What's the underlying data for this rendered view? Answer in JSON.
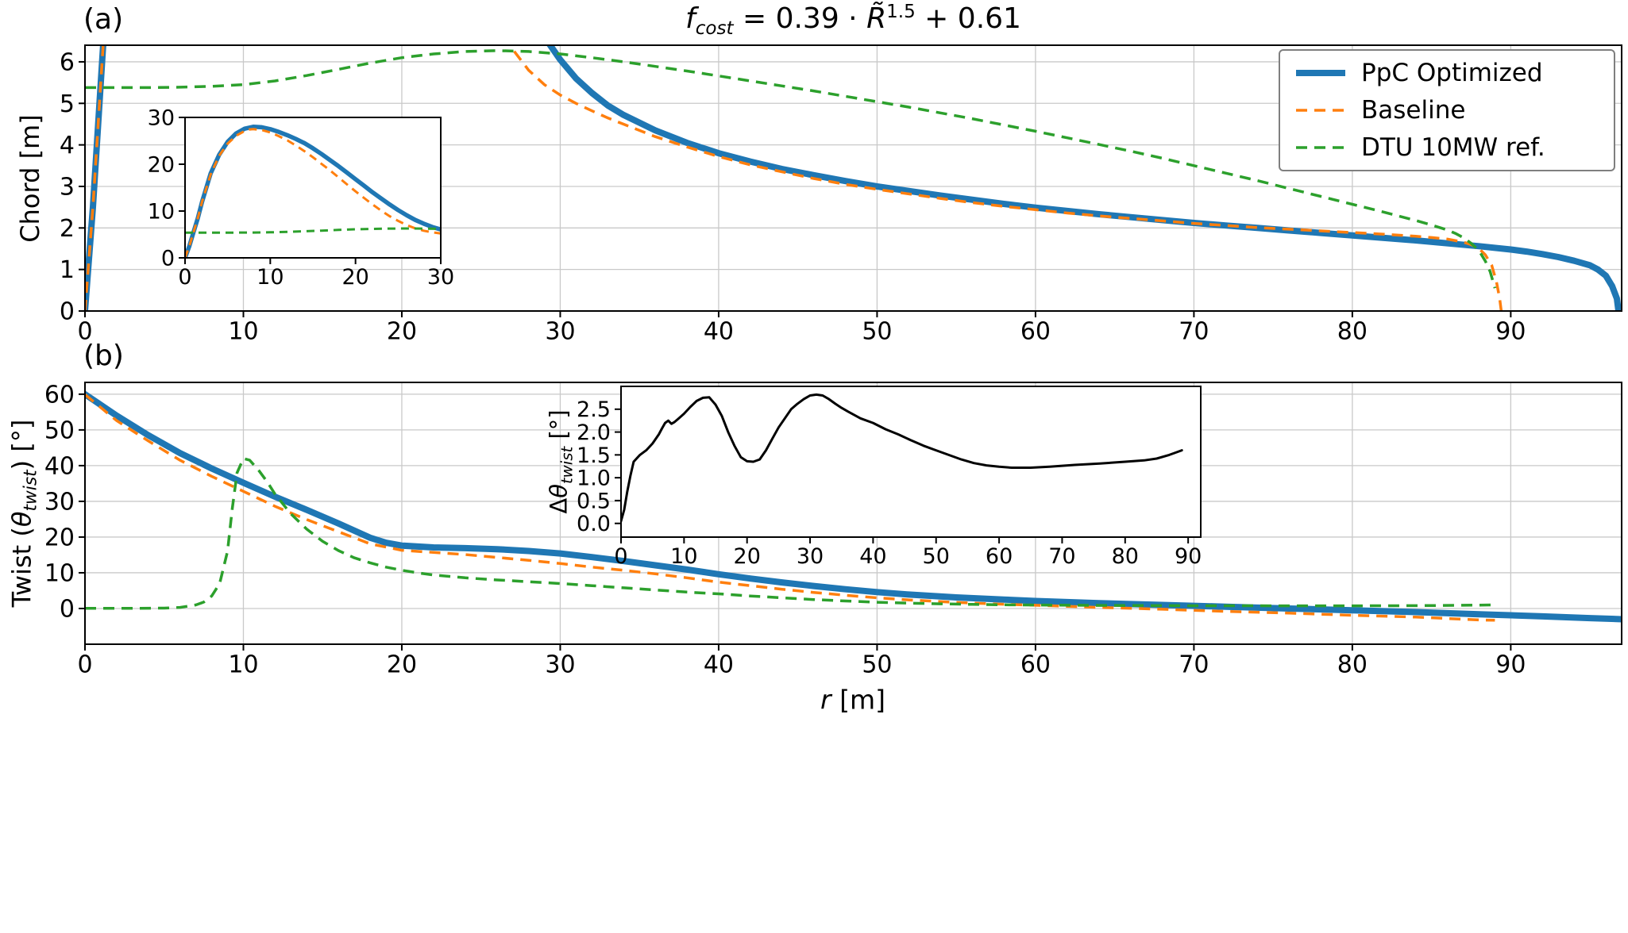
{
  "figure": {
    "title_parts": {
      "var": "f",
      "subscript": "cost",
      "mid": " = 0.39 · ",
      "base": "R̃",
      "exponent": "1.5",
      "tail": " + 0.61"
    },
    "panel_a_label": "(a)",
    "panel_b_label": "(b)"
  },
  "axes_labels": {
    "chord_ylabel": "Chord [m]",
    "twist_p1": "Twist (",
    "twist_theta": "θ",
    "twist_sub": "twist",
    "twist_p2": ") [°]",
    "xlabel_var": "r",
    "xlabel_unit": " [m]",
    "inset_p1": "Δ",
    "inset_theta": "θ",
    "inset_sub": "twist",
    "inset_p2": " [°]"
  },
  "style": {
    "background": "#ffffff",
    "grid_color": "#c9c9c9",
    "axis_color": "#000000",
    "blue": "#1f77b4",
    "orange": "#ff7f0e",
    "green": "#2ca02c",
    "black": "#000000"
  },
  "chart_data": [
    {
      "id": "panel-a",
      "type": "line",
      "title": "f_cost = 0.39 · R̃^1.5 + 0.61",
      "xlabel": "",
      "ylabel": "Chord [m]",
      "xlim": [
        0,
        97
      ],
      "ylim": [
        0,
        6.4
      ],
      "xticks": [
        0,
        10,
        20,
        30,
        40,
        50,
        60,
        70,
        80,
        90
      ],
      "xtick_labels": [
        "0",
        "10",
        "20",
        "30",
        "40",
        "50",
        "60",
        "70",
        "80",
        "90"
      ],
      "yticks": [
        0,
        1,
        2,
        3,
        4,
        5,
        6
      ],
      "ytick_labels": [
        "0",
        "1",
        "2",
        "3",
        "4",
        "5",
        "6"
      ],
      "grid": true,
      "legend_position": "upper right",
      "series": [
        {
          "name": "PpC Optimized",
          "color": "#1f77b4",
          "width": 8,
          "dash": null,
          "x": [
            0,
            0.5,
            1,
            1.5,
            2,
            3,
            4,
            5,
            6,
            7,
            8,
            9,
            10,
            11,
            12,
            13,
            14,
            15,
            16,
            17,
            18,
            19,
            20,
            21,
            22,
            23,
            24,
            25,
            26,
            27,
            28,
            29,
            30,
            31,
            32,
            33,
            34,
            36,
            38,
            40,
            42,
            44,
            46,
            48,
            50,
            52,
            54,
            56,
            58,
            60,
            62,
            64,
            66,
            68,
            70,
            72,
            74,
            76,
            78,
            80,
            82,
            84,
            86,
            88,
            90,
            91,
            92,
            93,
            94,
            95,
            95.5,
            96,
            96.4,
            96.7,
            96.8
          ],
          "y": [
            0,
            2.5,
            5.5,
            8.5,
            12,
            18,
            22,
            24.8,
            26.6,
            27.6,
            28,
            27.9,
            27.5,
            26.9,
            26.2,
            25.4,
            24.5,
            23.4,
            22.2,
            20.9,
            19.6,
            18.2,
            16.8,
            15.4,
            14,
            12.7,
            11.4,
            10.2,
            9.1,
            8.1,
            7.3,
            6.6,
            6.05,
            5.6,
            5.25,
            4.95,
            4.72,
            4.35,
            4.05,
            3.8,
            3.6,
            3.42,
            3.27,
            3.13,
            3,
            2.89,
            2.78,
            2.68,
            2.58,
            2.49,
            2.41,
            2.33,
            2.26,
            2.19,
            2.12,
            2.06,
            2,
            1.94,
            1.88,
            1.82,
            1.76,
            1.7,
            1.63,
            1.56,
            1.48,
            1.43,
            1.37,
            1.3,
            1.21,
            1.1,
            1.0,
            0.85,
            0.6,
            0.3,
            0
          ]
        },
        {
          "name": "Baseline",
          "color": "#ff7f0e",
          "width": 3.5,
          "dash": "14 9",
          "x": [
            0,
            0.5,
            1,
            1.5,
            2,
            3,
            4,
            5,
            6,
            7,
            7.5,
            8,
            9,
            10,
            11,
            12,
            13,
            14,
            15,
            16,
            17,
            18,
            19,
            20,
            21,
            22,
            23,
            24,
            25,
            26,
            27,
            28,
            29,
            30,
            31,
            32,
            33,
            34,
            36,
            38,
            40,
            42,
            44,
            46,
            48,
            50,
            52,
            54,
            56,
            58,
            60,
            62,
            64,
            66,
            68,
            70,
            72,
            74,
            76,
            78,
            80,
            82,
            84,
            85,
            86,
            87,
            87.5,
            88,
            88.4,
            88.8,
            89.1,
            89.3,
            89.4
          ],
          "y": [
            0,
            2.5,
            5.5,
            8.5,
            12,
            17.8,
            21.8,
            24.4,
            26.1,
            27.1,
            27.4,
            27.5,
            27.3,
            26.8,
            26,
            25.1,
            24,
            22.8,
            21.5,
            20.1,
            18.7,
            17.2,
            15.7,
            14.2,
            12.8,
            11.4,
            10.1,
            8.9,
            7.9,
            7,
            6.3,
            5.8,
            5.45,
            5.2,
            5,
            4.82,
            4.65,
            4.5,
            4.2,
            3.95,
            3.72,
            3.52,
            3.35,
            3.19,
            3.05,
            2.93,
            2.82,
            2.71,
            2.61,
            2.52,
            2.44,
            2.36,
            2.29,
            2.23,
            2.17,
            2.11,
            2.06,
            2.01,
            1.97,
            1.93,
            1.89,
            1.85,
            1.8,
            1.77,
            1.73,
            1.66,
            1.6,
            1.5,
            1.35,
            1.1,
            0.7,
            0.3,
            0
          ]
        },
        {
          "name": "DTU 10MW ref.",
          "color": "#2ca02c",
          "width": 3.5,
          "dash": "14 9",
          "x": [
            0,
            2,
            4,
            6,
            8,
            10,
            12,
            14,
            16,
            18,
            20,
            22,
            24,
            26,
            28,
            30,
            32,
            34,
            36,
            38,
            40,
            42,
            44,
            46,
            48,
            50,
            52,
            54,
            56,
            58,
            60,
            62,
            64,
            66,
            68,
            70,
            72,
            74,
            76,
            78,
            80,
            82,
            83,
            84,
            85,
            86,
            86.5,
            87,
            87.5,
            88,
            88.4,
            88.7,
            89
          ],
          "y": [
            5.38,
            5.38,
            5.38,
            5.39,
            5.41,
            5.45,
            5.54,
            5.67,
            5.82,
            5.97,
            6.1,
            6.19,
            6.25,
            6.27,
            6.25,
            6.19,
            6.1,
            6,
            5.89,
            5.78,
            5.66,
            5.54,
            5.42,
            5.3,
            5.17,
            5.04,
            4.91,
            4.77,
            4.63,
            4.48,
            4.33,
            4.17,
            4.01,
            3.85,
            3.68,
            3.5,
            3.32,
            3.14,
            2.95,
            2.76,
            2.57,
            2.38,
            2.28,
            2.18,
            2.07,
            1.95,
            1.87,
            1.77,
            1.63,
            1.45,
            1.2,
            0.95,
            0.55
          ]
        }
      ]
    },
    {
      "id": "panel-a-inset",
      "type": "line",
      "xlabel": "",
      "ylabel": "",
      "xlim": [
        0,
        30
      ],
      "ylim": [
        0,
        30
      ],
      "xticks": [
        0,
        10,
        20,
        30
      ],
      "xtick_labels": [
        "0",
        "10",
        "20",
        "30"
      ],
      "yticks": [
        0,
        10,
        20,
        30
      ],
      "ytick_labels": [
        "0",
        "10",
        "20",
        "30"
      ],
      "grid": false,
      "series_from": "panel-a",
      "style_override": [
        {
          "width": 5.5
        },
        {
          "width": 3,
          "dash": "10 7"
        },
        {
          "width": 3,
          "dash": "10 7"
        }
      ]
    },
    {
      "id": "panel-b",
      "type": "line",
      "xlabel": "r [m]",
      "ylabel": "Twist (θ_twist) [°]",
      "xlim": [
        0,
        97
      ],
      "ylim": [
        -10,
        63.3
      ],
      "xticks": [
        0,
        10,
        20,
        30,
        40,
        50,
        60,
        70,
        80,
        90
      ],
      "xtick_labels": [
        "0",
        "10",
        "20",
        "30",
        "40",
        "50",
        "60",
        "70",
        "80",
        "90"
      ],
      "yticks": [
        0,
        10,
        20,
        30,
        40,
        50,
        60
      ],
      "ytick_labels": [
        "0",
        "10",
        "20",
        "30",
        "40",
        "50",
        "60"
      ],
      "grid": true,
      "series": [
        {
          "name": "PpC Optimized",
          "color": "#1f77b4",
          "width": 8,
          "dash": null,
          "x": [
            0,
            2,
            4,
            6,
            8,
            10,
            12,
            14,
            16,
            17,
            18,
            19,
            20,
            22,
            24,
            26,
            28,
            30,
            32,
            34,
            36,
            38,
            40,
            42,
            44,
            46,
            48,
            50,
            52,
            55,
            58,
            60,
            64,
            68,
            72,
            76,
            80,
            84,
            88,
            92,
            95,
            97
          ],
          "y": [
            60,
            54,
            48.5,
            43.5,
            39.2,
            35.2,
            31.3,
            27.6,
            23.8,
            21.8,
            19.8,
            18.4,
            17.6,
            17.1,
            16.9,
            16.6,
            16.1,
            15.4,
            14.4,
            13.3,
            12.1,
            10.9,
            9.6,
            8.4,
            7.3,
            6.3,
            5.4,
            4.6,
            3.9,
            3.1,
            2.5,
            2.1,
            1.5,
            1.0,
            0.5,
            0,
            -0.5,
            -1,
            -1.6,
            -2.2,
            -2.7,
            -3
          ]
        },
        {
          "name": "Baseline",
          "color": "#ff7f0e",
          "width": 3.5,
          "dash": "14 9",
          "x": [
            0,
            2,
            4,
            6,
            8,
            10,
            12,
            14,
            16,
            18,
            20,
            22,
            24,
            26,
            28,
            30,
            32,
            34,
            36,
            38,
            40,
            42,
            44,
            46,
            48,
            50,
            52,
            55,
            58,
            60,
            64,
            68,
            72,
            76,
            80,
            84,
            88,
            89
          ],
          "y": [
            59.9,
            52.6,
            46.9,
            41.5,
            37,
            32.8,
            28.6,
            24.9,
            21.5,
            18.1,
            16.3,
            15.7,
            15.1,
            14.3,
            13.5,
            12.6,
            11.6,
            10.7,
            9.7,
            8.6,
            7.4,
            6.4,
            5.4,
            4.5,
            3.7,
            3,
            2.4,
            1.7,
            1.2,
            0.9,
            0.3,
            -0.2,
            -0.8,
            -1.3,
            -1.9,
            -2.4,
            -3.2,
            -3.3
          ]
        },
        {
          "name": "DTU 10MW ref.",
          "color": "#2ca02c",
          "width": 3.5,
          "dash": "14 9",
          "x": [
            0,
            3,
            5,
            6,
            7,
            7.5,
            8,
            8.5,
            9,
            9.3,
            9.6,
            10,
            10.4,
            11,
            11.5,
            12,
            13,
            14,
            15,
            16,
            17,
            18,
            19,
            20,
            21,
            22,
            24,
            26,
            28,
            30,
            32,
            34,
            36,
            38,
            40,
            42,
            44,
            46,
            48,
            50,
            52,
            54,
            56,
            58,
            60,
            64,
            68,
            72,
            76,
            80,
            84,
            87,
            89
          ],
          "y": [
            0.05,
            0.05,
            0.1,
            0.3,
            1,
            1.8,
            3.5,
            7,
            16,
            28,
            38,
            42,
            41.5,
            38.5,
            35.5,
            32,
            26.5,
            22.2,
            18.8,
            16.2,
            14.2,
            12.8,
            11.6,
            10.7,
            10,
            9.4,
            8.6,
            8,
            7.5,
            7,
            6.4,
            5.8,
            5.2,
            4.6,
            4.1,
            3.5,
            3,
            2.5,
            2.1,
            1.75,
            1.5,
            1.3,
            1.15,
            1.05,
            0.97,
            0.87,
            0.8,
            0.77,
            0.75,
            0.76,
            0.8,
            0.9,
            1
          ]
        }
      ]
    },
    {
      "id": "panel-b-inset",
      "type": "line",
      "xlabel": "",
      "ylabel": "Δθ_twist [°]",
      "xlim": [
        0,
        92
      ],
      "ylim": [
        -0.3,
        3.0
      ],
      "xticks": [
        0,
        10,
        20,
        30,
        40,
        50,
        60,
        70,
        80,
        90
      ],
      "xtick_labels": [
        "0",
        "10",
        "20",
        "30",
        "40",
        "50",
        "60",
        "70",
        "80",
        "90"
      ],
      "yticks": [
        0,
        0.5,
        1,
        1.5,
        2,
        2.5
      ],
      "ytick_labels": [
        "0.0",
        "0.5",
        "1.0",
        "1.5",
        "2.0",
        "2.5"
      ],
      "grid": false,
      "series": [
        {
          "name": "Δθ_twist",
          "color": "#000000",
          "width": 3,
          "dash": null,
          "x": [
            0,
            0.5,
            1,
            1.5,
            2,
            3,
            4,
            5,
            6,
            6.5,
            7,
            7.5,
            8,
            8.5,
            9,
            10,
            11,
            12,
            13,
            14,
            15,
            16,
            17,
            18,
            19,
            20,
            21,
            22,
            23,
            24,
            25,
            26,
            27,
            28,
            29,
            30,
            31,
            32,
            33,
            34,
            35,
            36,
            38,
            40,
            42,
            44,
            46,
            48,
            50,
            52,
            54,
            56,
            58,
            60,
            62,
            65,
            68,
            72,
            76,
            80,
            83,
            85,
            87,
            88,
            89
          ],
          "y": [
            0.05,
            0.3,
            0.7,
            1.05,
            1.35,
            1.5,
            1.6,
            1.75,
            1.95,
            2.08,
            2.2,
            2.25,
            2.18,
            2.22,
            2.28,
            2.4,
            2.55,
            2.68,
            2.75,
            2.76,
            2.6,
            2.35,
            2.0,
            1.7,
            1.45,
            1.36,
            1.35,
            1.4,
            1.6,
            1.85,
            2.1,
            2.3,
            2.5,
            2.62,
            2.72,
            2.8,
            2.82,
            2.8,
            2.72,
            2.62,
            2.53,
            2.45,
            2.3,
            2.2,
            2.06,
            1.95,
            1.82,
            1.7,
            1.6,
            1.5,
            1.4,
            1.32,
            1.27,
            1.24,
            1.22,
            1.22,
            1.24,
            1.28,
            1.31,
            1.35,
            1.38,
            1.42,
            1.5,
            1.55,
            1.6
          ]
        }
      ]
    }
  ]
}
